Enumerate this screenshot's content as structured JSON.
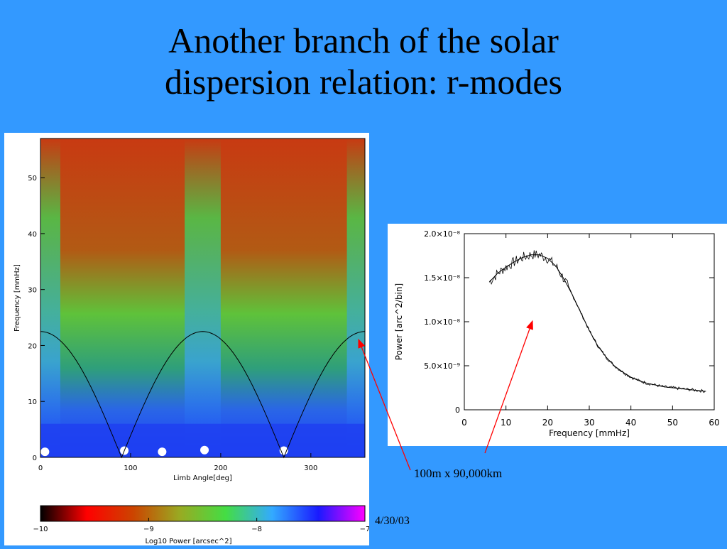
{
  "slide": {
    "title_line1": "Another branch of the solar",
    "title_line2": "dispersion relation: r-modes",
    "annotation": "100m x 90,000km",
    "date": "4/30/03"
  },
  "colors": {
    "background": "#3399ff",
    "arrow": "#ff0000",
    "title_text": "#000000"
  },
  "chart_data": [
    {
      "type": "heatmap",
      "title": "",
      "xlabel": "Limb Angle[deg]",
      "ylabel": "Frequency [mmHz]",
      "xlim": [
        0,
        360
      ],
      "ylim": [
        0,
        57
      ],
      "x_ticks": [
        0,
        100,
        200,
        300
      ],
      "y_ticks": [
        0,
        10,
        20,
        30,
        40,
        50
      ],
      "colorbar": {
        "label": "Log10 Power [arcsec^2]",
        "range": [
          -10,
          -7
        ],
        "ticks": [
          "-10",
          "-9",
          "-8",
          "-7"
        ],
        "colors": [
          "#000000",
          "#ff0000",
          "#cc4400",
          "#99aa22",
          "#44dd44",
          "#33aaff",
          "#1a1aff",
          "#ff00ff"
        ]
      },
      "overlay_curve": {
        "description": "22.5*|cos(angle)|",
        "peak_frequency": 22.5,
        "zero_angles": [
          90,
          270
        ],
        "peak_angles": [
          0,
          180,
          360
        ]
      }
    },
    {
      "type": "line",
      "title": "",
      "xlabel": "Frequency [mmHz]",
      "ylabel": "Power [arc^2/bin]",
      "xlim": [
        0,
        60
      ],
      "ylim": [
        0,
        2e-08
      ],
      "x_ticks": [
        0,
        10,
        20,
        30,
        40,
        50,
        60
      ],
      "y_ticks": [
        "0",
        "5.0×10⁻⁹",
        "1.0×10⁻⁸",
        "1.5×10⁻⁸",
        "2.0×10⁻⁸"
      ],
      "y_tick_values": [
        0,
        5e-09,
        1e-08,
        1.5e-08,
        2e-08
      ],
      "series": [
        {
          "x": [
            6,
            8,
            10,
            12,
            14,
            16,
            18,
            20,
            22,
            24,
            26,
            28,
            30,
            32,
            34,
            36,
            38,
            40,
            42,
            44,
            46,
            48,
            50,
            52,
            54,
            56,
            58
          ],
          "y": [
            1.45e-08,
            1.55e-08,
            1.62e-08,
            1.68e-08,
            1.73e-08,
            1.76e-08,
            1.76e-08,
            1.72e-08,
            1.63e-08,
            1.48e-08,
            1.3e-08,
            1.1e-08,
            9e-09,
            7.3e-09,
            6e-09,
            5e-09,
            4.3e-09,
            3.7e-09,
            3.3e-09,
            3e-09,
            2.8e-09,
            2.6e-09,
            2.5e-09,
            2.4e-09,
            2.3e-09,
            2.2e-09,
            2.1e-09
          ]
        }
      ]
    }
  ]
}
